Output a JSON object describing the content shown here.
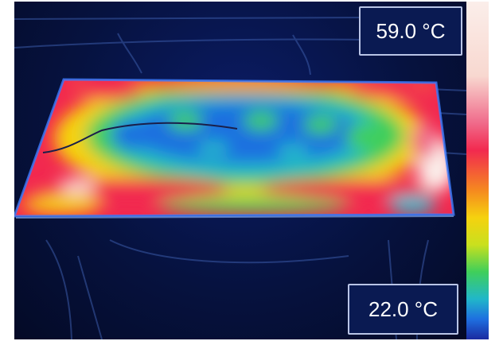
{
  "thermal_view": {
    "max_temperature_label": "59.0 °C",
    "min_temperature_label": "22.0 °C",
    "palette": [
      "#1b2aa0",
      "#1e6fe0",
      "#21b7c9",
      "#3fcf5a",
      "#c9e01e",
      "#f5d20f",
      "#f58a1f",
      "#f2294f",
      "#f06a8a",
      "#f8d8d0",
      "#fbeeea"
    ],
    "background_color": "#06123f",
    "label_border_color": "#b9c4e6"
  }
}
